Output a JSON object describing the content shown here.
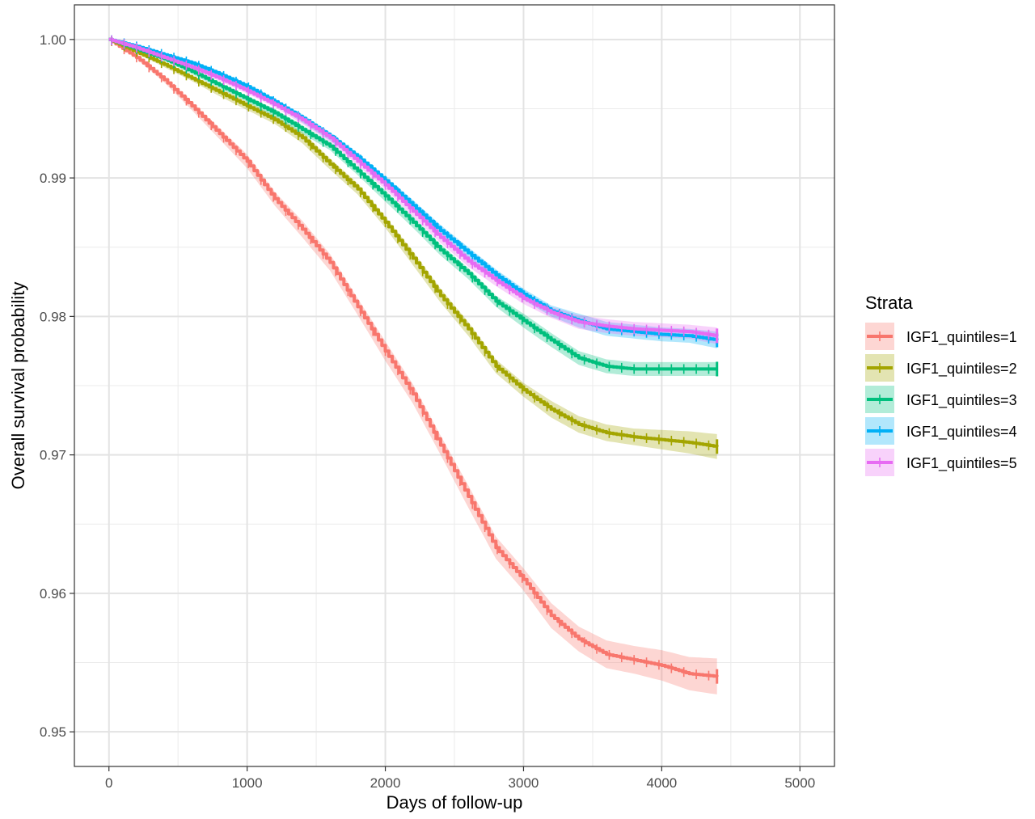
{
  "chart_data": {
    "type": "line",
    "xlabel": "Days of follow-up",
    "ylabel": "Overall survival probability",
    "xlim": [
      -250,
      5250
    ],
    "ylim": [
      0.9475,
      1.0025
    ],
    "x_ticks": [
      0,
      1000,
      2000,
      3000,
      4000,
      5000
    ],
    "x_tick_labels": [
      "0",
      "1000",
      "2000",
      "3000",
      "4000",
      "5000"
    ],
    "y_ticks": [
      0.95,
      0.96,
      0.97,
      0.98,
      0.99,
      1.0
    ],
    "y_tick_labels": [
      "0.95",
      "0.96",
      "0.97",
      "0.98",
      "0.99",
      "1.00"
    ],
    "grid": true,
    "legend": {
      "title": "Strata",
      "position": "right"
    },
    "series": [
      {
        "name": "IGF1_quintiles=1",
        "color": "#F8766D",
        "x": [
          0,
          200,
          400,
          600,
          800,
          1000,
          1200,
          1400,
          1600,
          1800,
          2000,
          2200,
          2400,
          2600,
          2800,
          3000,
          3200,
          3400,
          3600,
          3800,
          4000,
          4200,
          4400
        ],
        "y": [
          1.0,
          0.9987,
          0.9971,
          0.9952,
          0.9932,
          0.9912,
          0.9885,
          0.9863,
          0.9839,
          0.9807,
          0.9775,
          0.9744,
          0.9707,
          0.967,
          0.9633,
          0.961,
          0.9584,
          0.9567,
          0.9556,
          0.9552,
          0.9548,
          0.9542,
          0.954
        ],
        "ci_half_width": [
          0.0,
          0.0001,
          0.0002,
          0.0003,
          0.0004,
          0.0005,
          0.0005,
          0.0006,
          0.0006,
          0.0006,
          0.0007,
          0.0007,
          0.0007,
          0.0008,
          0.0008,
          0.0008,
          0.0009,
          0.0009,
          0.001,
          0.001,
          0.0011,
          0.0012,
          0.0013
        ]
      },
      {
        "name": "IGF1_quintiles=2",
        "color": "#A3A500",
        "x": [
          0,
          200,
          400,
          600,
          800,
          1000,
          1200,
          1400,
          1600,
          1800,
          2000,
          2200,
          2400,
          2600,
          2800,
          3000,
          3200,
          3400,
          3600,
          3800,
          4000,
          4200,
          4400
        ],
        "y": [
          1.0,
          0.9991,
          0.9982,
          0.9972,
          0.9962,
          0.9952,
          0.9942,
          0.9929,
          0.991,
          0.9892,
          0.9868,
          0.9842,
          0.9815,
          0.9791,
          0.9764,
          0.9747,
          0.9733,
          0.9722,
          0.9716,
          0.9713,
          0.9711,
          0.9709,
          0.9706
        ],
        "ci_half_width": [
          0.0,
          0.0001,
          0.0002,
          0.0002,
          0.0003,
          0.0003,
          0.0003,
          0.0004,
          0.0004,
          0.0004,
          0.0004,
          0.0005,
          0.0005,
          0.0005,
          0.0005,
          0.0005,
          0.0006,
          0.0006,
          0.0006,
          0.0006,
          0.0007,
          0.0008,
          0.0009
        ]
      },
      {
        "name": "IGF1_quintiles=3",
        "color": "#00BF7D",
        "x": [
          0,
          200,
          400,
          600,
          800,
          1000,
          1200,
          1400,
          1600,
          1800,
          2000,
          2200,
          2400,
          2600,
          2800,
          3000,
          3200,
          3400,
          3600,
          3800,
          4000,
          4200,
          4400
        ],
        "y": [
          1.0,
          0.9993,
          0.9986,
          0.9977,
          0.9967,
          0.9957,
          0.9947,
          0.9935,
          0.9923,
          0.9905,
          0.9887,
          0.9868,
          0.9848,
          0.9831,
          0.9811,
          0.9797,
          0.9783,
          0.977,
          0.9764,
          0.9762,
          0.9762,
          0.9762,
          0.9762
        ],
        "ci_half_width": [
          0.0,
          0.0001,
          0.0001,
          0.0002,
          0.0002,
          0.0002,
          0.0003,
          0.0003,
          0.0003,
          0.0003,
          0.0004,
          0.0004,
          0.0004,
          0.0004,
          0.0004,
          0.0005,
          0.0005,
          0.0005,
          0.0005,
          0.0005,
          0.0005,
          0.0005,
          0.0005
        ]
      },
      {
        "name": "IGF1_quintiles=4",
        "color": "#00B0F6",
        "x": [
          0,
          200,
          400,
          600,
          800,
          1000,
          1200,
          1400,
          1600,
          1800,
          2000,
          2200,
          2400,
          2600,
          2800,
          3000,
          3200,
          3400,
          3600,
          3800,
          4000,
          4200,
          4400
        ],
        "y": [
          1.0,
          0.9995,
          0.9989,
          0.9983,
          0.9975,
          0.9966,
          0.9955,
          0.9943,
          0.993,
          0.9915,
          0.9898,
          0.988,
          0.9862,
          0.9846,
          0.983,
          0.9816,
          0.9804,
          0.9797,
          0.9791,
          0.9789,
          0.9787,
          0.9786,
          0.9783
        ],
        "ci_half_width": [
          0.0,
          0.0001,
          0.0001,
          0.0002,
          0.0002,
          0.0002,
          0.0002,
          0.0003,
          0.0003,
          0.0003,
          0.0003,
          0.0004,
          0.0004,
          0.0004,
          0.0004,
          0.0004,
          0.0004,
          0.0005,
          0.0005,
          0.0005,
          0.0005,
          0.0005,
          0.0006
        ]
      },
      {
        "name": "IGF1_quintiles=5",
        "color": "#E76BF3",
        "x": [
          0,
          200,
          400,
          600,
          800,
          1000,
          1200,
          1400,
          1600,
          1800,
          2000,
          2200,
          2400,
          2600,
          2800,
          3000,
          3200,
          3400,
          3600,
          3800,
          4000,
          4200,
          4400
        ],
        "y": [
          1.0,
          0.9994,
          0.9987,
          0.998,
          0.9972,
          0.9963,
          0.9953,
          0.9942,
          0.9929,
          0.9912,
          0.9895,
          0.9876,
          0.9857,
          0.984,
          0.9826,
          0.9813,
          0.9803,
          0.9796,
          0.9793,
          0.9791,
          0.979,
          0.9789,
          0.9786
        ],
        "ci_half_width": [
          0.0,
          0.0001,
          0.0001,
          0.0002,
          0.0002,
          0.0002,
          0.0002,
          0.0003,
          0.0003,
          0.0003,
          0.0003,
          0.0004,
          0.0004,
          0.0004,
          0.0004,
          0.0004,
          0.0004,
          0.0005,
          0.0005,
          0.0005,
          0.0005,
          0.0005,
          0.0006
        ]
      }
    ]
  }
}
